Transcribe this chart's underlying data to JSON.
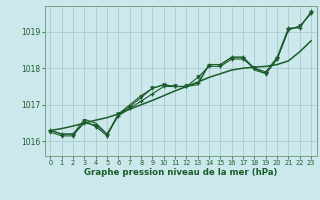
{
  "xlabel": "Graphe pression niveau de la mer (hPa)",
  "bg_color": "#cce8ec",
  "grid_color": "#aacccc",
  "line_color": "#1a5c2a",
  "x_ticks": [
    0,
    1,
    2,
    3,
    4,
    5,
    6,
    7,
    8,
    9,
    10,
    11,
    12,
    13,
    14,
    15,
    16,
    17,
    18,
    19,
    20,
    21,
    22,
    23
  ],
  "ylim": [
    1015.6,
    1019.7
  ],
  "yticks": [
    1016,
    1017,
    1018,
    1019
  ],
  "series1": [
    1016.3,
    1016.2,
    1016.2,
    1016.5,
    1016.45,
    1016.2,
    1016.7,
    1016.9,
    1017.1,
    1017.3,
    1017.5,
    1017.5,
    1017.5,
    1017.6,
    1018.1,
    1018.1,
    1018.3,
    1018.3,
    1018.0,
    1017.9,
    1018.3,
    1019.1,
    1019.1,
    1019.55
  ],
  "series2": [
    1016.25,
    1016.15,
    1016.15,
    1016.55,
    1016.4,
    1016.15,
    1016.75,
    1016.95,
    1017.2,
    1017.45,
    1017.55,
    1017.5,
    1017.5,
    1017.75,
    1018.05,
    1018.05,
    1018.25,
    1018.25,
    1018.0,
    1017.85,
    1018.25,
    1019.05,
    1019.15,
    1019.5
  ],
  "series3": [
    1016.3,
    1016.2,
    1016.2,
    1016.6,
    1016.5,
    1016.2,
    1016.75,
    1017.0,
    1017.25,
    1017.45,
    1017.55,
    1017.5,
    1017.5,
    1017.55,
    1018.1,
    1018.1,
    1018.3,
    1018.3,
    1017.95,
    1017.85,
    1018.25,
    1019.05,
    1019.15,
    1019.5
  ],
  "series_smooth": [
    1016.3,
    1016.35,
    1016.42,
    1016.5,
    1016.58,
    1016.65,
    1016.75,
    1016.88,
    1017.0,
    1017.12,
    1017.25,
    1017.38,
    1017.5,
    1017.62,
    1017.75,
    1017.85,
    1017.95,
    1018.0,
    1018.03,
    1018.05,
    1018.1,
    1018.2,
    1018.45,
    1018.75
  ]
}
